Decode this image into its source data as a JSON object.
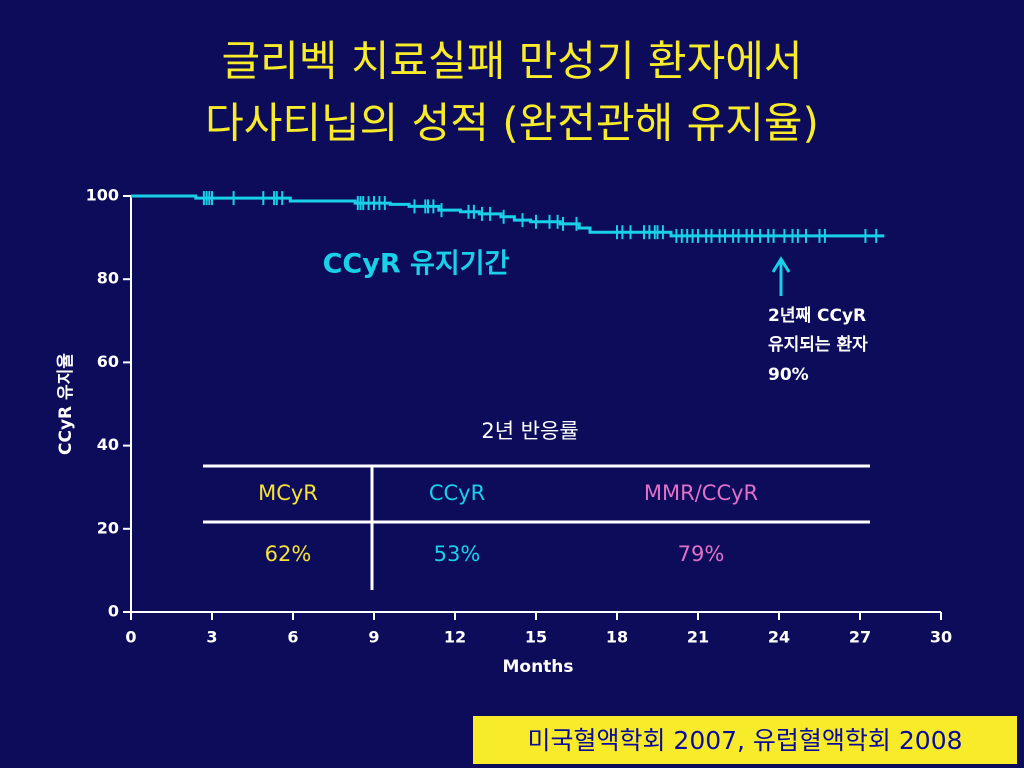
{
  "title": [
    "글리벡 치료실패 만성기 환자에서",
    "다사티닙의 성적 (완전관해 유지율)"
  ],
  "chart_data": {
    "type": "line",
    "drawstyle": "steps-post",
    "xlabel": "Months",
    "ylabel": "CCyR 유지율",
    "x": [
      0,
      2.4,
      5.9,
      8.3,
      9.6,
      10.3,
      11.4,
      12.2,
      12.9,
      13.7,
      14.2,
      14.8,
      15.9,
      16.6,
      17.0,
      20.0,
      27.9
    ],
    "series": [
      {
        "name": "CCyR 유지기간",
        "color": "#19d0e8",
        "values": [
          100,
          99.5,
          98.8,
          98.3,
          98,
          97.5,
          96.6,
          96.2,
          95.7,
          95,
          94.2,
          93.8,
          93.3,
          92.3,
          91.3,
          90.4,
          90.4
        ],
        "censored_x": [
          2.7,
          2.8,
          2.9,
          3.0,
          3.8,
          4.9,
          5.3,
          5.4,
          5.6,
          8.4,
          8.5,
          8.6,
          8.8,
          9.0,
          9.2,
          9.4,
          10.5,
          10.9,
          11.0,
          11.2,
          11.5,
          12.5,
          12.7,
          13.0,
          13.3,
          13.8,
          14.5,
          15.0,
          15.5,
          15.8,
          16.0,
          16.5,
          18.0,
          18.2,
          18.5,
          19.0,
          19.2,
          19.4,
          19.5,
          19.7,
          20.2,
          20.4,
          20.6,
          20.8,
          21.0,
          21.3,
          21.5,
          21.8,
          22.0,
          22.3,
          22.5,
          22.8,
          23.0,
          23.3,
          23.6,
          23.8,
          24.2,
          24.5,
          24.7,
          25.0,
          25.5,
          25.7,
          27.2,
          27.6
        ]
      }
    ],
    "xlim": [
      0,
      30
    ],
    "xticks": [
      0,
      3,
      6,
      9,
      12,
      15,
      18,
      21,
      24,
      27,
      30
    ],
    "ylim": [
      0,
      100
    ],
    "yticks": [
      0,
      20,
      40,
      60,
      80,
      100
    ],
    "grid": false,
    "note": [
      "2년째 CCyR",
      "유지되는 환자",
      "90%"
    ]
  },
  "response_table": {
    "title": "2년 반응률",
    "columns": [
      {
        "name": "MCyR",
        "color": "#f5e23a"
      },
      {
        "name": "CCyR",
        "color": "#19d0e8"
      },
      {
        "name": "MMR/CCyR",
        "color": "#e070c8"
      }
    ],
    "cells": [
      "62%",
      "53%",
      "79%"
    ]
  },
  "source": "미국혈액학회 2007, 유럽혈액학회 2008"
}
